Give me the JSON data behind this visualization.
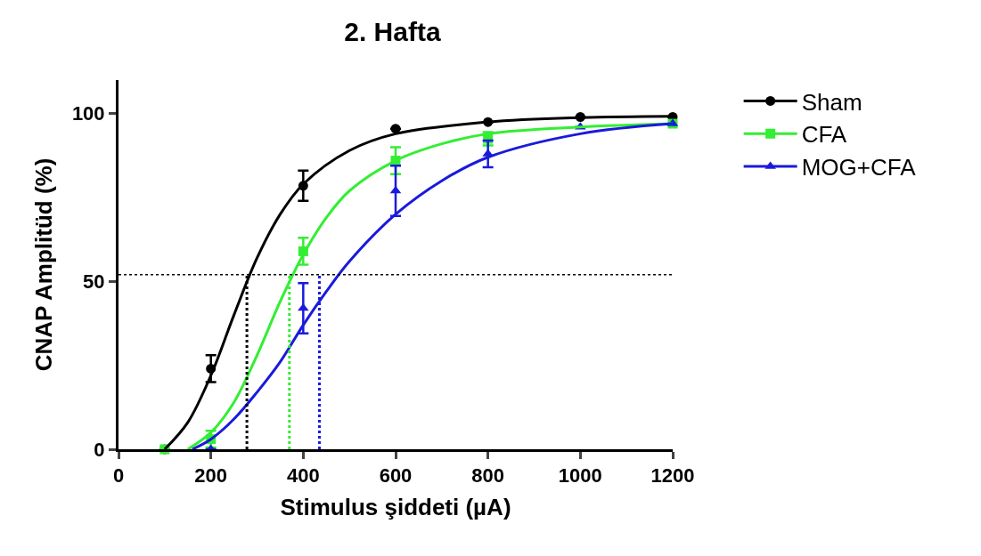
{
  "chart_data": {
    "type": "scatter",
    "title": "2. Hafta",
    "xlabel": "Stimulus şiddeti (µA)",
    "ylabel": "CNAP Amplitüd (%)",
    "x": [
      100,
      200,
      400,
      600,
      800,
      1000,
      1200
    ],
    "series": [
      {
        "name": "Sham",
        "color": "#000000",
        "marker": "circle",
        "values": [
          0,
          24,
          78.5,
          95.5,
          97.5,
          99,
          99
        ],
        "errors": [
          null,
          4,
          4.5,
          null,
          null,
          null,
          null
        ]
      },
      {
        "name": "CFA",
        "color": "#33ee33",
        "marker": "square",
        "values": [
          0,
          3,
          59,
          86,
          92.5,
          null,
          97
        ],
        "errors": [
          null,
          2.5,
          4,
          4,
          2,
          null,
          null
        ]
      },
      {
        "name": "MOG+CFA",
        "color": "#1a1adc",
        "marker": "triangle",
        "values": [
          null,
          0,
          42,
          77,
          88,
          96,
          97
        ],
        "errors": [
          null,
          null,
          7.5,
          7.5,
          4,
          null,
          null
        ]
      },
      {
        "type": "line",
        "color": "#000000",
        "x": [
          100,
          150,
          200,
          250,
          300,
          350,
          400,
          500,
          600,
          800,
          1000,
          1200
        ],
        "values": [
          0,
          8,
          22,
          40,
          57,
          70,
          79,
          89,
          94,
          97.5,
          98.8,
          99.2
        ]
      },
      {
        "type": "line",
        "color": "#33ee33",
        "x": [
          150,
          200,
          250,
          300,
          350,
          400,
          450,
          500,
          600,
          700,
          800,
          1000,
          1200
        ],
        "values": [
          0,
          5,
          14,
          28,
          44,
          58,
          69,
          77,
          86,
          91,
          94,
          96,
          97
        ]
      },
      {
        "type": "line",
        "color": "#1a1adc",
        "x": [
          160,
          200,
          250,
          300,
          350,
          400,
          450,
          500,
          600,
          700,
          800,
          1000,
          1200
        ],
        "values": [
          0,
          3,
          9,
          17,
          26,
          37,
          47,
          56,
          70,
          80,
          87,
          94,
          97
        ]
      }
    ],
    "ref_lines": [
      {
        "axis": "y",
        "value": 52,
        "color": "#000000",
        "line_style": "dotted"
      },
      {
        "axis": "x",
        "value": 278,
        "color": "#000000",
        "line_style": "dotted"
      },
      {
        "axis": "x",
        "value": 370,
        "color": "#33ee33",
        "line_style": "dotted"
      },
      {
        "axis": "x",
        "value": 435,
        "color": "#1a1adc",
        "line_style": "dotted"
      }
    ],
    "xlim": [
      0,
      1200
    ],
    "xticks": [
      0,
      200,
      400,
      600,
      800,
      1000,
      1200
    ],
    "ylim": [
      0,
      110
    ],
    "yticks": [
      0,
      50,
      100
    ],
    "grid": false,
    "legend": "top right"
  }
}
